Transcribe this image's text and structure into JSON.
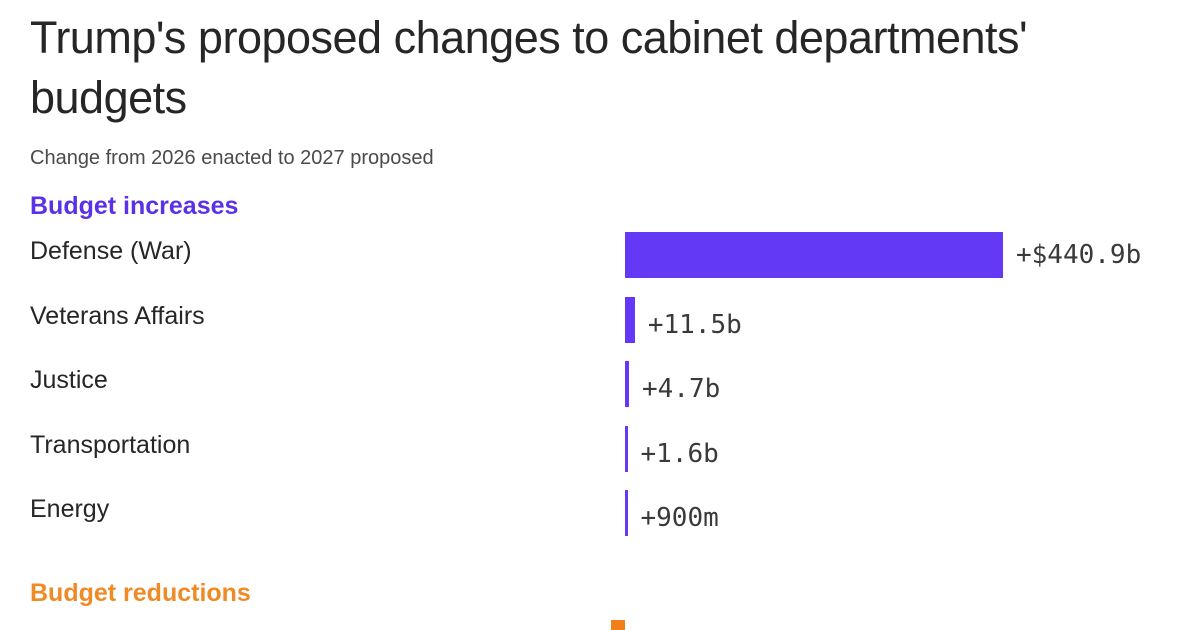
{
  "chart_data": {
    "type": "bar",
    "orientation": "horizontal",
    "title": "Trump's proposed changes to cabinet departments' budgets",
    "subtitle": "Change from 2026 enacted to 2027 proposed",
    "units": "USD",
    "sections": [
      {
        "label": "Budget increases",
        "color": "#6339f5",
        "label_color": "#5b30e6",
        "items": [
          {
            "name": "Defense (War)",
            "value": 440.9,
            "label": "+$440.9b"
          },
          {
            "name": "Veterans Affairs",
            "value": 11.5,
            "label": "+11.5b"
          },
          {
            "name": "Justice",
            "value": 4.7,
            "label": "+4.7b"
          },
          {
            "name": "Transportation",
            "value": 1.6,
            "label": "+1.6b"
          },
          {
            "name": "Energy",
            "value": 0.9,
            "label": "+900m"
          }
        ]
      },
      {
        "label": "Budget reductions",
        "color": "#f37f1b",
        "label_color": "#f08a24",
        "items": []
      }
    ],
    "xlabel": "",
    "ylabel": ""
  }
}
